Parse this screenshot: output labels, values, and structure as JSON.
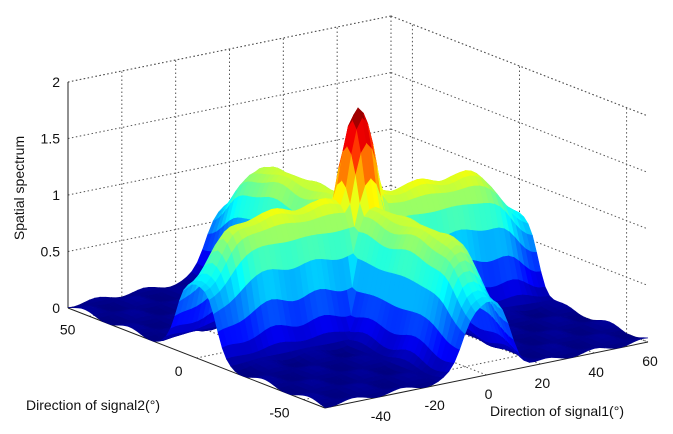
{
  "chart_data": {
    "type": "surface",
    "title": "",
    "zlabel": "Spatial spectrum",
    "xlabel": "Direction of signal1(°)",
    "ylabel": "Direction of signal2(°)",
    "xlim": [
      -60,
      60
    ],
    "ylim": [
      -60,
      60
    ],
    "zlim": [
      0,
      2
    ],
    "x_ticks": [
      "-40",
      "-20",
      "0",
      "20",
      "40",
      "60"
    ],
    "y_ticks": [
      "50",
      "0",
      "-50"
    ],
    "z_ticks": [
      "0",
      "0.5",
      "1",
      "1.5",
      "2"
    ],
    "grid": true,
    "colormap": "jet",
    "description_of_peaks": {
      "main_peak": {
        "x": 0,
        "y": 0,
        "z": 1.9
      },
      "ridge_along_x_at_y": 0,
      "ridge_height": 1.15,
      "ridge_along_y_at_x": 0,
      "ridge_y_height": 1.1
    }
  }
}
